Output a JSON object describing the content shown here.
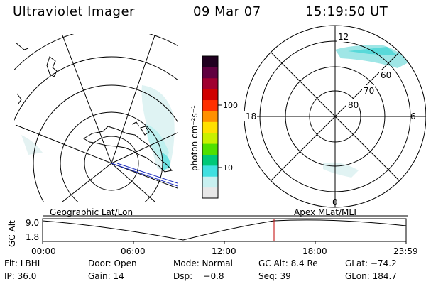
{
  "header": {
    "title": "Ultraviolet Imager",
    "date": "09 Mar 07",
    "time": "15:19:50 UT"
  },
  "left_panel": {
    "label": "Geographic Lat/Lon"
  },
  "right_panel": {
    "label": "Apex MLat/MLT",
    "mlt_labels": [
      "12",
      "18",
      "6",
      "0"
    ],
    "mlat_labels": [
      "60",
      "70",
      "80"
    ]
  },
  "colorbar": {
    "unit": "photon cm⁻²s⁻¹",
    "ticks": [
      "100",
      "10"
    ],
    "colors": [
      "#e8e8e8",
      "#c8f0f0",
      "#40e0e0",
      "#00c878",
      "#50e000",
      "#c8f000",
      "#ffe000",
      "#ff9000",
      "#ff3000",
      "#d00000",
      "#a00030",
      "#600040",
      "#200020"
    ]
  },
  "timeline": {
    "axis_label": "GC Alt",
    "y_labels": [
      "9.0",
      "1.8"
    ],
    "x_labels": [
      "00:00",
      "06:00",
      "12:00",
      "18:00",
      "23:59"
    ],
    "marker_color": "#c00000"
  },
  "footer": {
    "flt": "Flt: LBHL",
    "door": "Door: Open",
    "mode": "Mode: Normal",
    "gc_alt": "GC Alt: 8.4 Re",
    "glat": "GLat: −74.2",
    "ip": "IP: 36.0",
    "gain": "Gain: 14",
    "dsp": "Dsp:    −0.8",
    "seq": "Seq: 39",
    "glon": "GLon: 184.7"
  }
}
